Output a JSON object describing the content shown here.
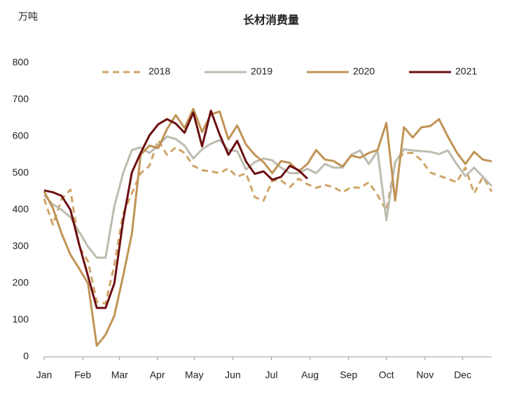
{
  "chart_data": {
    "type": "line",
    "title": "长材消费量",
    "y_unit": "万吨",
    "x": [
      0,
      1,
      2,
      3,
      4,
      5,
      6,
      7,
      8,
      9,
      10,
      11,
      12,
      13,
      14,
      15,
      16,
      17,
      18,
      19,
      20,
      21,
      22,
      23,
      24,
      25,
      26,
      27,
      28,
      29,
      30,
      31,
      32,
      33,
      34,
      35,
      36,
      37,
      38,
      39,
      40,
      41,
      42,
      43,
      44,
      45,
      46,
      47,
      48,
      49,
      50,
      51
    ],
    "xlim": [
      0,
      51
    ],
    "xticks": [
      {
        "value": 0,
        "label": "Jan"
      },
      {
        "value": 4.4,
        "label": "Feb"
      },
      {
        "value": 8.6,
        "label": "Mar"
      },
      {
        "value": 12.9,
        "label": "Apr"
      },
      {
        "value": 17.1,
        "label": "May"
      },
      {
        "value": 21.5,
        "label": "Jun"
      },
      {
        "value": 25.9,
        "label": "Jul"
      },
      {
        "value": 30.3,
        "label": "Aug"
      },
      {
        "value": 34.7,
        "label": "Sep"
      },
      {
        "value": 39,
        "label": "Oct"
      },
      {
        "value": 43.4,
        "label": "Nov"
      },
      {
        "value": 47.7,
        "label": "Dec"
      }
    ],
    "ylim": [
      0,
      800
    ],
    "yticks": [
      0,
      100,
      200,
      300,
      400,
      500,
      600,
      700,
      800
    ],
    "legend": "top",
    "series": [
      {
        "name": "2018",
        "color": "#cfa567",
        "dashed": true,
        "values": [
          430,
          360,
          430,
          455,
          300,
          260,
          150,
          145,
          250,
          390,
          445,
          500,
          520,
          590,
          550,
          570,
          555,
          520,
          508,
          505,
          500,
          513,
          490,
          500,
          435,
          425,
          480,
          480,
          462,
          485,
          470,
          460,
          468,
          462,
          448,
          462,
          460,
          475,
          440,
          398,
          530,
          555,
          555,
          535,
          502,
          493,
          485,
          475,
          515,
          445,
          490,
          450
        ]
      },
      {
        "name": "2019",
        "color": "#bcbcb0",
        "values": [
          440,
          415,
          400,
          380,
          340,
          300,
          270,
          270,
          410,
          500,
          563,
          570,
          555,
          575,
          600,
          593,
          575,
          540,
          565,
          580,
          590,
          563,
          560,
          510,
          530,
          540,
          535,
          515,
          500,
          500,
          512,
          500,
          525,
          515,
          515,
          550,
          562,
          525,
          560,
          372,
          530,
          565,
          562,
          560,
          558,
          552,
          562,
          525,
          492,
          515,
          490,
          465
        ]
      },
      {
        "name": "2020",
        "color": "#c09355",
        "values": [
          450,
          405,
          335,
          278,
          240,
          200,
          30,
          60,
          112,
          220,
          335,
          550,
          575,
          568,
          620,
          658,
          623,
          675,
          612,
          660,
          668,
          592,
          630,
          578,
          550,
          530,
          500,
          533,
          528,
          505,
          525,
          563,
          537,
          533,
          518,
          548,
          542,
          555,
          563,
          637,
          425,
          625,
          597,
          625,
          628,
          647,
          600,
          557,
          525,
          558,
          537,
          532
        ]
      },
      {
        "name": "2021",
        "color": "#6b0f12",
        "values": [
          453,
          448,
          438,
          400,
          305,
          220,
          133,
          133,
          200,
          370,
          502,
          555,
          603,
          633,
          647,
          635,
          610,
          665,
          573,
          670,
          605,
          550,
          588,
          532,
          498,
          505,
          482,
          490,
          520,
          508,
          485,
          null,
          null,
          null,
          null,
          null,
          null,
          null,
          null,
          null,
          null,
          null,
          null,
          null,
          null,
          null,
          null,
          null,
          null,
          null,
          null,
          null
        ]
      }
    ]
  }
}
